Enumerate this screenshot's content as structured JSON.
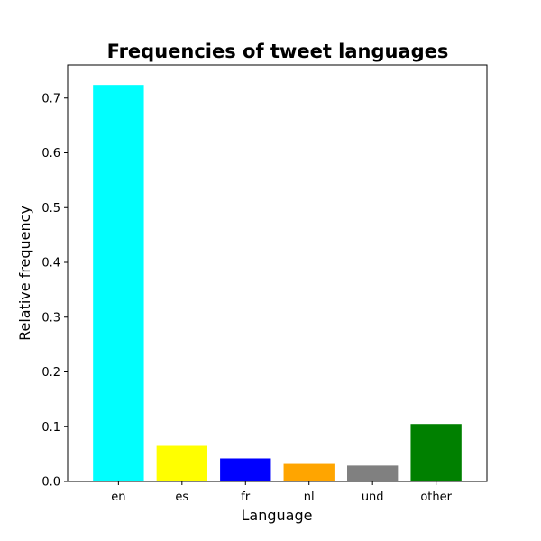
{
  "chart_data": {
    "type": "bar",
    "title": "Frequencies of tweet languages",
    "xlabel": "Language",
    "ylabel": "Relative frequency",
    "categories": [
      "en",
      "es",
      "fr",
      "nl",
      "und",
      "other"
    ],
    "values": [
      0.724,
      0.065,
      0.042,
      0.032,
      0.029,
      0.105
    ],
    "colors": [
      "#00ffff",
      "#ffff00",
      "#0000ff",
      "#ffa500",
      "#808080",
      "#008000"
    ],
    "ylim": [
      0,
      0.7605
    ],
    "yticks": [
      0.0,
      0.1,
      0.2,
      0.3,
      0.4,
      0.5,
      0.6,
      0.7
    ],
    "ytick_labels": [
      "0.0",
      "0.1",
      "0.2",
      "0.3",
      "0.4",
      "0.5",
      "0.6",
      "0.7"
    ],
    "grid": false,
    "legend": false
  }
}
